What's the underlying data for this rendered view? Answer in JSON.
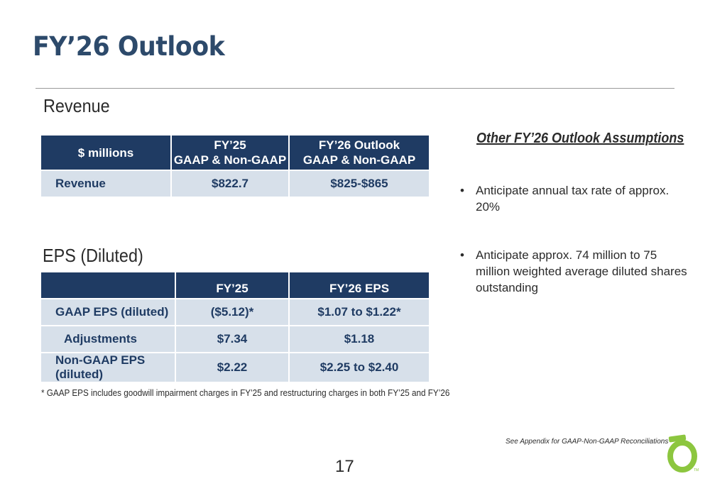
{
  "title": "FY’26 Outlook",
  "revenue": {
    "heading": "Revenue",
    "header": {
      "c1": "$ millions",
      "c2_line1": "FY’25",
      "c2_line2": "GAAP & Non-GAAP",
      "c3_line1": "FY’26 Outlook",
      "c3_line2": "GAAP & Non-GAAP"
    },
    "rows": [
      {
        "label": "Revenue",
        "fy25": "$822.7",
        "fy26": "$825-$865"
      }
    ]
  },
  "eps": {
    "heading": "EPS (Diluted)",
    "header": {
      "c1": "",
      "c2": "FY’25",
      "c3": "FY’26 EPS"
    },
    "rows": [
      {
        "label": "GAAP EPS (diluted)",
        "fy25": "($5.12)*",
        "fy26": "$1.07 to $1.22*"
      },
      {
        "label": "Adjustments",
        "fy25": "$7.34",
        "fy26": "$1.18"
      },
      {
        "label": "Non-GAAP EPS (diluted)",
        "fy25": "$2.22",
        "fy26": "$2.25 to $2.40"
      }
    ]
  },
  "footnote": "* GAAP EPS includes goodwill impairment charges in FY’25 and restructuring charges in both FY’25 and FY’26",
  "assumptions": {
    "heading": "Other FY’26 Outlook Assumptions",
    "bullet_symbol": "•",
    "items": [
      "Anticipate annual tax rate of approx. 20%",
      "Anticipate approx. 74 million to 75 million weighted average diluted shares outstanding"
    ]
  },
  "appendix_note": "See Appendix for GAAP-Non-GAAP Reconciliations",
  "page_number": "17",
  "logo": {
    "icon": "ring-logo-icon",
    "color": "#8cc63f",
    "mark": "TM"
  },
  "colors": {
    "title": "#2d4a6b",
    "table_header": "#1f3b63",
    "table_row": "#d7e0ea"
  }
}
